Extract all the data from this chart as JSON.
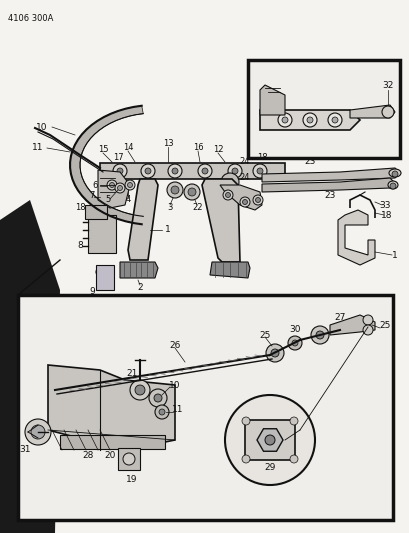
{
  "bg_color": "#ffffff",
  "page_bg": "#f5f3ef",
  "border_color": "#111111",
  "title_code": "4106 300A",
  "fig_width": 4.1,
  "fig_height": 5.33,
  "dpi": 100,
  "black": "#111111",
  "gray_light": "#cccccc",
  "gray_mid": "#999999",
  "gray_dark": "#555555"
}
